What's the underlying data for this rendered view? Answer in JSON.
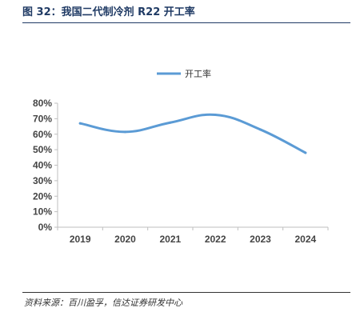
{
  "figure": {
    "title": "图 32：我国二代制冷剂 R22 开工率",
    "source": "资料来源：百川盈孚，信达证券研发中心"
  },
  "chart_data": {
    "type": "line",
    "title": "",
    "xlabel": "",
    "ylabel": "",
    "categories": [
      "2019",
      "2020",
      "2021",
      "2022",
      "2023",
      "2024"
    ],
    "series": [
      {
        "name": "开工率",
        "values": [
          67,
          61.5,
          67.5,
          72.5,
          63,
          48
        ],
        "color": "#5b9bd5"
      }
    ],
    "yticks": [
      "0%",
      "10%",
      "20%",
      "30%",
      "40%",
      "50%",
      "60%",
      "70%",
      "80%"
    ],
    "ylim": [
      0,
      80
    ],
    "grid": false,
    "smooth": true,
    "legend": "top-center"
  }
}
